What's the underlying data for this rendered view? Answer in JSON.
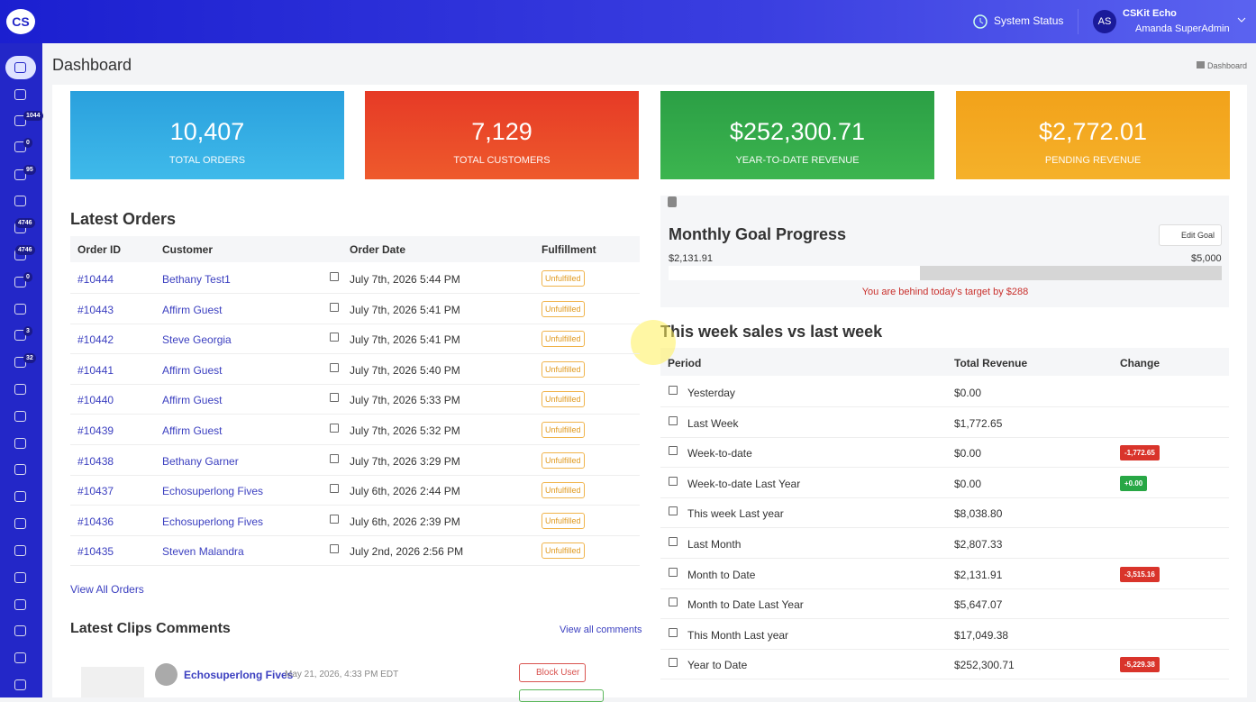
{
  "header": {
    "logo": "CS",
    "system_status": "System Status",
    "user_initials": "AS",
    "user_name": "CSKit Echo",
    "user_role": "Amanda SuperAdmin"
  },
  "sidebar": {
    "badges": [
      "1044",
      "0",
      "95",
      "4746",
      "4746",
      "0",
      "3",
      "32"
    ]
  },
  "page": {
    "title": "Dashboard",
    "breadcrumb": "Dashboard"
  },
  "stats": [
    {
      "value": "10,407",
      "label": "TOTAL ORDERS"
    },
    {
      "value": "7,129",
      "label": "TOTAL CUSTOMERS"
    },
    {
      "value": "$252,300.71",
      "label": "YEAR-TO-DATE REVENUE"
    },
    {
      "value": "$2,772.01",
      "label": "PENDING REVENUE"
    }
  ],
  "latest_orders": {
    "title": "Latest Orders",
    "columns": [
      "Order ID",
      "Customer",
      "Order Date",
      "Fulfillment"
    ],
    "rows": [
      [
        "#10444",
        "Bethany Test1",
        "July 7th, 2026 5:44 PM",
        "Unfulfilled"
      ],
      [
        "#10443",
        "Affirm Guest",
        "July 7th, 2026 5:41 PM",
        "Unfulfilled"
      ],
      [
        "#10442",
        "Steve Georgia",
        "July 7th, 2026 5:41 PM",
        "Unfulfilled"
      ],
      [
        "#10441",
        "Affirm Guest",
        "July 7th, 2026 5:40 PM",
        "Unfulfilled"
      ],
      [
        "#10440",
        "Affirm Guest",
        "July 7th, 2026 5:33 PM",
        "Unfulfilled"
      ],
      [
        "#10439",
        "Affirm Guest",
        "July 7th, 2026 5:32 PM",
        "Unfulfilled"
      ],
      [
        "#10438",
        "Bethany Garner",
        "July 7th, 2026 3:29 PM",
        "Unfulfilled"
      ],
      [
        "#10437",
        "Echosuperlong Fives",
        "July 6th, 2026 2:44 PM",
        "Unfulfilled"
      ],
      [
        "#10436",
        "Echosuperlong Fives",
        "July 6th, 2026 2:39 PM",
        "Unfulfilled"
      ],
      [
        "#10435",
        "Steven Malandra",
        "July 2nd, 2026 2:56 PM",
        "Unfulfilled"
      ]
    ],
    "view_all": "View All Orders"
  },
  "clips": {
    "title": "Latest Clips Comments",
    "view_all": "View all comments",
    "user": "Echosuperlong Fives",
    "date": "May 21, 2026, 4:33 PM EDT",
    "block": "Block User"
  },
  "goal": {
    "title": "Monthly Goal Progress",
    "edit": "Edit Goal",
    "current": "$2,131.91",
    "target": "$5,000",
    "message": "You are behind today's target by $288"
  },
  "weekly": {
    "title": "This week sales vs last week",
    "columns": [
      "Period",
      "Total Revenue",
      "Change"
    ],
    "rows": [
      [
        "Yesterday",
        "$0.00",
        null
      ],
      [
        "Last Week",
        "$1,772.65",
        null
      ],
      [
        "Week-to-date",
        "$0.00",
        "-1,772.65"
      ],
      [
        "Week-to-date Last Year",
        "$0.00",
        "+0.00"
      ],
      [
        "This week Last year",
        "$8,038.80",
        null
      ],
      [
        "Last Month",
        "$2,807.33",
        null
      ],
      [
        "Month to Date",
        "$2,131.91",
        "-3,515.16"
      ],
      [
        "Month to Date Last Year",
        "$5,647.07",
        null
      ],
      [
        "This Month Last year",
        "$17,049.38",
        null
      ],
      [
        "Year to Date",
        "$252,300.71",
        "-5,229.38"
      ]
    ]
  }
}
